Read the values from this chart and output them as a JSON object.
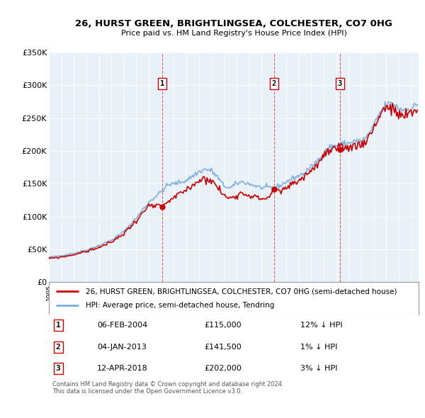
{
  "title": "26, HURST GREEN, BRIGHTLINGSEA, COLCHESTER, CO7 0HG",
  "subtitle": "Price paid vs. HM Land Registry's House Price Index (HPI)",
  "background_color": "#e8f0f8",
  "plot_bg_color": "#e8f0f8",
  "ylim": [
    0,
    350000
  ],
  "yticks": [
    0,
    50000,
    100000,
    150000,
    200000,
    250000,
    300000,
    350000
  ],
  "ytick_labels": [
    "£0",
    "£50K",
    "£100K",
    "£150K",
    "£200K",
    "£250K",
    "£300K",
    "£350K"
  ],
  "hpi_color": "#7aacde",
  "price_color": "#cc0000",
  "sale_dates": [
    2004.09,
    2013.01,
    2018.29
  ],
  "sale_prices": [
    115000,
    141500,
    202000
  ],
  "sale_labels": [
    "1",
    "2",
    "3"
  ],
  "legend_price_label": "26, HURST GREEN, BRIGHTLINGSEA, COLCHESTER, CO7 0HG (semi-detached house)",
  "legend_hpi_label": "HPI: Average price, semi-detached house, Tendring",
  "table_rows": [
    [
      "1",
      "06-FEB-2004",
      "£115,000",
      "12% ↓ HPI"
    ],
    [
      "2",
      "04-JAN-2013",
      "£141,500",
      "1% ↓ HPI"
    ],
    [
      "3",
      "12-APR-2018",
      "£202,000",
      "3% ↓ HPI"
    ]
  ],
  "footer": "Contains HM Land Registry data © Crown copyright and database right 2024.\nThis data is licensed under the Open Government Licence v3.0."
}
